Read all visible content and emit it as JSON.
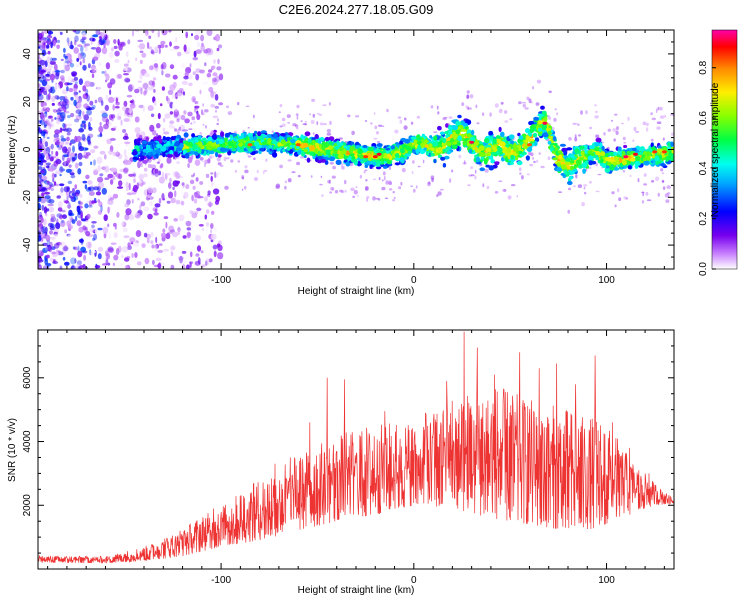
{
  "title": "C2E6.2024.277.18.05.G09",
  "chart_data": [
    {
      "type": "heatmap",
      "xlabel": "Height of straight line (km)",
      "ylabel": "Frequency (Hz)",
      "xlim": [
        -195,
        135
      ],
      "ylim": [
        -50,
        50
      ],
      "x_ticks": [
        -100,
        0,
        100
      ],
      "y_ticks": [
        -40,
        -20,
        0,
        20,
        40
      ],
      "grid": false,
      "colorbar": {
        "label": "Normalized spectral amplitude",
        "range": [
          0,
          0.95
        ],
        "ticks": [
          0.0,
          0.2,
          0.4,
          0.6,
          0.8
        ]
      },
      "ridge": {
        "x": [
          -145,
          -120,
          -100,
          -80,
          -60,
          -45,
          -30,
          -15,
          -5,
          0,
          5,
          10,
          15,
          20,
          25,
          30,
          35,
          40,
          45,
          50,
          55,
          60,
          65,
          68,
          70,
          75,
          80,
          85,
          90,
          95,
          100,
          110,
          120,
          130,
          135
        ],
        "freq": [
          0,
          1,
          2,
          3,
          2,
          0,
          -2,
          -3,
          -1,
          2,
          3,
          0,
          1,
          5,
          8,
          3,
          -2,
          0,
          2,
          -1,
          0,
          4,
          10,
          12,
          7,
          -4,
          -8,
          -4,
          -3,
          0,
          -5,
          -4,
          -3,
          -2,
          -1
        ]
      }
    },
    {
      "type": "line",
      "xlabel": "Height of straight line (km)",
      "ylabel": "SNR (10 * v/v)",
      "xlim": [
        -195,
        135
      ],
      "ylim": [
        0,
        7500
      ],
      "x_ticks": [
        -100,
        0,
        100
      ],
      "y_ticks": [
        2000,
        4000,
        6000
      ],
      "grid": false,
      "series": [
        {
          "color": "#ee3333",
          "envelope_x": [
            -195,
            -160,
            -140,
            -120,
            -100,
            -80,
            -60,
            -40,
            -20,
            0,
            20,
            40,
            60,
            80,
            100,
            115,
            125,
            135
          ],
          "envelope_low": [
            200,
            180,
            250,
            400,
            700,
            900,
            1200,
            1500,
            1700,
            2000,
            1900,
            1600,
            1400,
            1200,
            1300,
            1800,
            2000,
            2050
          ],
          "envelope_high": [
            420,
            400,
            700,
            1300,
            2000,
            2800,
            3600,
            4200,
            4600,
            4600,
            5400,
            5800,
            5400,
            5000,
            4600,
            3300,
            2700,
            2200
          ],
          "spikes": [
            {
              "x": -104,
              "y": 1900
            },
            {
              "x": -90,
              "y": 2300
            },
            {
              "x": -83,
              "y": 2700
            },
            {
              "x": -72,
              "y": 3300
            },
            {
              "x": -64,
              "y": 3500
            },
            {
              "x": -54,
              "y": 4600
            },
            {
              "x": -45,
              "y": 6000
            },
            {
              "x": -36,
              "y": 5950
            },
            {
              "x": -28,
              "y": 4200
            },
            {
              "x": -15,
              "y": 4950
            },
            {
              "x": -6,
              "y": 3100
            },
            {
              "x": 6,
              "y": 4900
            },
            {
              "x": 17,
              "y": 5900
            },
            {
              "x": 26,
              "y": 7450
            },
            {
              "x": 33,
              "y": 6950
            },
            {
              "x": 42,
              "y": 6100
            },
            {
              "x": 55,
              "y": 6800
            },
            {
              "x": 65,
              "y": 6300
            },
            {
              "x": 74,
              "y": 6450
            },
            {
              "x": 84,
              "y": 5800
            },
            {
              "x": 94,
              "y": 6700
            },
            {
              "x": 103,
              "y": 4600
            },
            {
              "x": 112,
              "y": 3800
            },
            {
              "x": 122,
              "y": 3000
            }
          ]
        }
      ]
    }
  ]
}
